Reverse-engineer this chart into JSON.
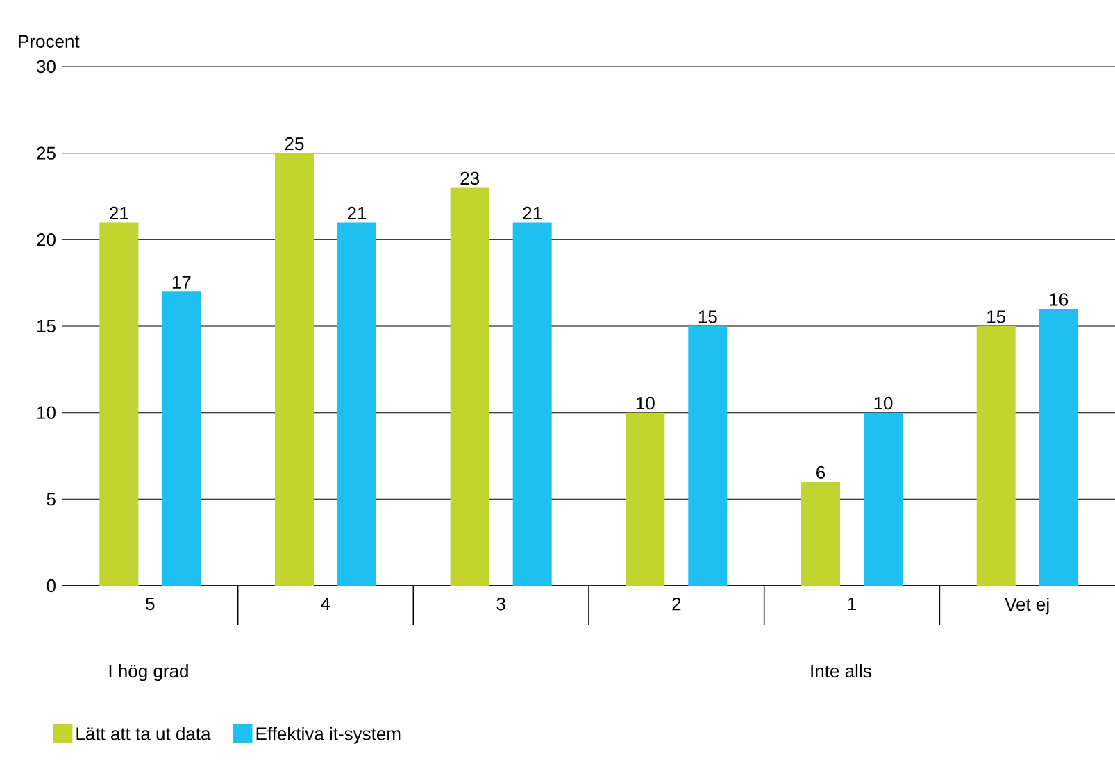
{
  "chart_data": {
    "type": "bar",
    "ylabel": "Procent",
    "categories": [
      "5",
      "4",
      "3",
      "2",
      "1",
      "Vet ej"
    ],
    "series": [
      {
        "name": "Lätt att ta ut data",
        "color": "#c2d52e",
        "values": [
          21,
          25,
          23,
          10,
          6,
          15
        ]
      },
      {
        "name": "Effektiva it-system",
        "color": "#1ec0f0",
        "values": [
          17,
          21,
          21,
          15,
          10,
          16
        ]
      }
    ],
    "ylim": [
      0,
      30
    ],
    "yticks": [
      0,
      5,
      10,
      15,
      20,
      25,
      30
    ],
    "grid": "y",
    "data_labels": true,
    "legend": "bottom left",
    "annotations": [
      "I hög grad",
      "Inte alls"
    ]
  }
}
